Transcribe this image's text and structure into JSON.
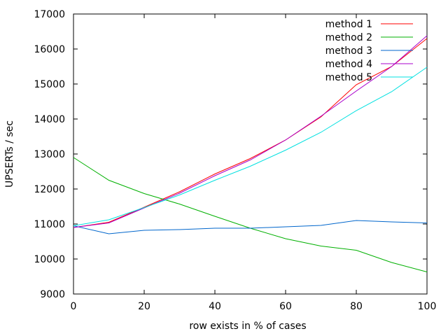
{
  "chart_data": {
    "type": "line",
    "title": "",
    "xlabel": "row exists in % of cases",
    "ylabel": "UPSERTs / sec",
    "xlim": [
      0,
      100
    ],
    "ylim": [
      9000,
      17000
    ],
    "x_ticks": [
      0,
      20,
      40,
      60,
      80,
      100
    ],
    "y_ticks": [
      9000,
      10000,
      11000,
      12000,
      13000,
      14000,
      15000,
      16000,
      17000
    ],
    "grid": false,
    "legend_position": "top-right",
    "x": [
      0,
      10,
      20,
      30,
      40,
      50,
      60,
      70,
      80,
      90,
      100
    ],
    "series": [
      {
        "name": "method 1",
        "color": "#ff0000",
        "values": [
          10900,
          11050,
          11480,
          11920,
          12430,
          12870,
          13400,
          14060,
          14980,
          15500,
          16300
        ]
      },
      {
        "name": "method 2",
        "color": "#00b000",
        "values": [
          12900,
          12250,
          11870,
          11570,
          11220,
          10880,
          10580,
          10370,
          10250,
          9900,
          9630
        ]
      },
      {
        "name": "method 3",
        "color": "#0066cc",
        "values": [
          10950,
          10720,
          10820,
          10840,
          10880,
          10880,
          10920,
          10960,
          11100,
          11060,
          11030
        ]
      },
      {
        "name": "method 4",
        "color": "#aa00cc",
        "values": [
          10900,
          11030,
          11460,
          11880,
          12380,
          12830,
          13400,
          14080,
          14800,
          15500,
          16380
        ]
      },
      {
        "name": "method 5",
        "color": "#00e0e0",
        "values": [
          10950,
          11120,
          11470,
          11830,
          12250,
          12650,
          13110,
          13620,
          14240,
          14780,
          15480
        ]
      }
    ]
  }
}
